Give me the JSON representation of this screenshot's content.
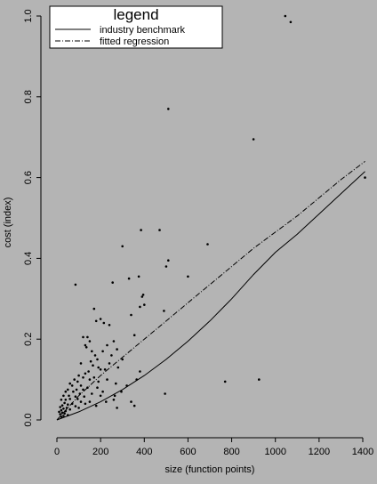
{
  "chart_data": {
    "type": "scatter",
    "title": "",
    "xlabel": "size (function points)",
    "ylabel": "cost (index)",
    "xlim": [
      -60,
      1460
    ],
    "ylim": [
      -0.03,
      1.02
    ],
    "x_ticks": [
      0,
      200,
      400,
      600,
      800,
      1000,
      1200,
      1400
    ],
    "x_tick_labels": [
      "0",
      "200",
      "400",
      "600",
      "800",
      "1000",
      "1200",
      "1400"
    ],
    "y_ticks": [
      0.0,
      0.2,
      0.4,
      0.6,
      0.8,
      1.0
    ],
    "y_tick_labels": [
      "0.0",
      "0.2",
      "0.4",
      "0.6",
      "0.8",
      "1.0"
    ],
    "grid": false,
    "legend": {
      "title": "legend",
      "position": "top-left",
      "entries": [
        {
          "label": "industry benchmark",
          "style": "solid"
        },
        {
          "label": "fitted regression",
          "style": "dashdot"
        }
      ]
    },
    "series": [
      {
        "name": "industry benchmark",
        "kind": "line",
        "style": "solid",
        "color": "#000000",
        "points": [
          [
            0,
            0.0
          ],
          [
            100,
            0.02
          ],
          [
            200,
            0.045
          ],
          [
            300,
            0.075
          ],
          [
            400,
            0.11
          ],
          [
            500,
            0.15
          ],
          [
            600,
            0.195
          ],
          [
            700,
            0.245
          ],
          [
            800,
            0.3
          ],
          [
            900,
            0.36
          ],
          [
            1000,
            0.415
          ],
          [
            1100,
            0.46
          ],
          [
            1200,
            0.51
          ],
          [
            1300,
            0.56
          ],
          [
            1410,
            0.615
          ]
        ]
      },
      {
        "name": "fitted regression",
        "kind": "line",
        "style": "dashdot",
        "color": "#000000",
        "points": [
          [
            0,
            0.0
          ],
          [
            100,
            0.06
          ],
          [
            200,
            0.11
          ],
          [
            300,
            0.155
          ],
          [
            400,
            0.2
          ],
          [
            500,
            0.245
          ],
          [
            600,
            0.29
          ],
          [
            700,
            0.335
          ],
          [
            800,
            0.38
          ],
          [
            900,
            0.425
          ],
          [
            1000,
            0.465
          ],
          [
            1100,
            0.505
          ],
          [
            1200,
            0.55
          ],
          [
            1300,
            0.595
          ],
          [
            1410,
            0.64
          ]
        ]
      },
      {
        "kind": "scatter",
        "color": "#000000",
        "points": [
          [
            1045,
            1.0
          ],
          [
            1070,
            0.985
          ],
          [
            510,
            0.77
          ],
          [
            900,
            0.695
          ],
          [
            1410,
            0.6
          ],
          [
            385,
            0.47
          ],
          [
            470,
            0.47
          ],
          [
            690,
            0.435
          ],
          [
            300,
            0.43
          ],
          [
            510,
            0.395
          ],
          [
            500,
            0.38
          ],
          [
            600,
            0.355
          ],
          [
            375,
            0.355
          ],
          [
            330,
            0.35
          ],
          [
            85,
            0.335
          ],
          [
            255,
            0.34
          ],
          [
            395,
            0.31
          ],
          [
            390,
            0.305
          ],
          [
            400,
            0.285
          ],
          [
            490,
            0.27
          ],
          [
            170,
            0.275
          ],
          [
            200,
            0.25
          ],
          [
            180,
            0.245
          ],
          [
            215,
            0.24
          ],
          [
            240,
            0.235
          ],
          [
            340,
            0.26
          ],
          [
            140,
            0.205
          ],
          [
            120,
            0.205
          ],
          [
            150,
            0.195
          ],
          [
            260,
            0.195
          ],
          [
            130,
            0.185
          ],
          [
            135,
            0.18
          ],
          [
            275,
            0.175
          ],
          [
            355,
            0.21
          ],
          [
            230,
            0.185
          ],
          [
            160,
            0.17
          ],
          [
            210,
            0.17
          ],
          [
            175,
            0.16
          ],
          [
            250,
            0.16
          ],
          [
            300,
            0.15
          ],
          [
            185,
            0.15
          ],
          [
            155,
            0.145
          ],
          [
            110,
            0.14
          ],
          [
            165,
            0.135
          ],
          [
            190,
            0.13
          ],
          [
            200,
            0.125
          ],
          [
            220,
            0.125
          ],
          [
            280,
            0.13
          ],
          [
            145,
            0.12
          ],
          [
            130,
            0.115
          ],
          [
            100,
            0.11
          ],
          [
            120,
            0.105
          ],
          [
            170,
            0.105
          ],
          [
            80,
            0.1
          ],
          [
            95,
            0.095
          ],
          [
            150,
            0.1
          ],
          [
            230,
            0.1
          ],
          [
            60,
            0.09
          ],
          [
            70,
            0.085
          ],
          [
            110,
            0.085
          ],
          [
            140,
            0.08
          ],
          [
            185,
            0.08
          ],
          [
            50,
            0.075
          ],
          [
            90,
            0.075
          ],
          [
            120,
            0.075
          ],
          [
            40,
            0.07
          ],
          [
            75,
            0.07
          ],
          [
            105,
            0.065
          ],
          [
            160,
            0.065
          ],
          [
            30,
            0.06
          ],
          [
            55,
            0.06
          ],
          [
            85,
            0.058
          ],
          [
            125,
            0.058
          ],
          [
            60,
            0.052
          ],
          [
            95,
            0.052
          ],
          [
            40,
            0.05
          ],
          [
            20,
            0.05
          ],
          [
            110,
            0.045
          ],
          [
            150,
            0.045
          ],
          [
            35,
            0.042
          ],
          [
            70,
            0.04
          ],
          [
            50,
            0.038
          ],
          [
            25,
            0.036
          ],
          [
            85,
            0.034
          ],
          [
            15,
            0.032
          ],
          [
            45,
            0.03
          ],
          [
            30,
            0.028
          ],
          [
            60,
            0.026
          ],
          [
            20,
            0.024
          ],
          [
            40,
            0.022
          ],
          [
            10,
            0.02
          ],
          [
            25,
            0.018
          ],
          [
            35,
            0.016
          ],
          [
            15,
            0.014
          ],
          [
            50,
            0.012
          ],
          [
            30,
            0.01
          ],
          [
            20,
            0.008
          ],
          [
            130,
            0.04
          ],
          [
            180,
            0.035
          ],
          [
            100,
            0.03
          ],
          [
            270,
            0.09
          ],
          [
            265,
            0.06
          ],
          [
            260,
            0.05
          ],
          [
            275,
            0.03
          ],
          [
            210,
            0.07
          ],
          [
            340,
            0.045
          ],
          [
            355,
            0.035
          ],
          [
            380,
            0.12
          ],
          [
            365,
            0.1
          ],
          [
            320,
            0.085
          ],
          [
            240,
            0.14
          ],
          [
            190,
            0.095
          ],
          [
            200,
            0.06
          ],
          [
            225,
            0.045
          ],
          [
            295,
            0.07
          ],
          [
            495,
            0.065
          ],
          [
            770,
            0.095
          ],
          [
            925,
            0.1
          ],
          [
            380,
            0.28
          ]
        ]
      }
    ]
  }
}
